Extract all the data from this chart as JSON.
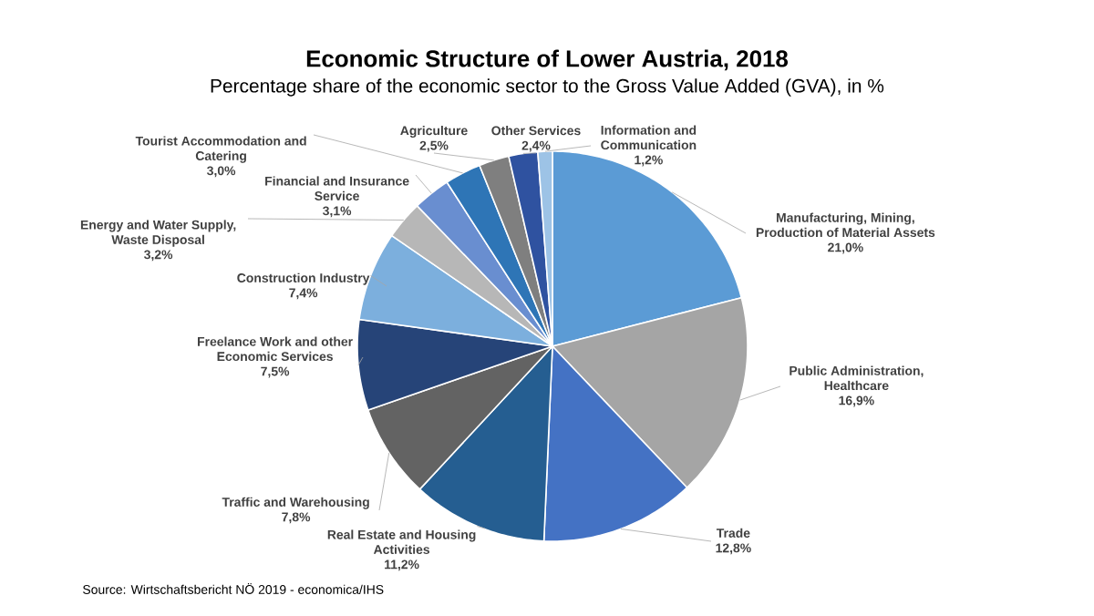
{
  "chart_data": {
    "type": "pie",
    "title": "Economic Structure of Lower Austria, 2018",
    "subtitle": "Percentage share of the economic sector to the Gross Value Added (GVA), in %",
    "categories": [
      "Manufacturing, Mining, Production of Material Assets",
      "Public Administration, Healthcare",
      "Trade",
      "Real Estate and Housing Activities",
      "Traffic and Warehousing",
      "Freelance Work and other Economic Services",
      "Construction Industry",
      "Energy and Water Supply, Waste Disposal",
      "Financial and Insurance Service",
      "Tourist Accommodation and Catering",
      "Agriculture",
      "Other Services",
      "Information and Communication"
    ],
    "values": [
      21.0,
      16.9,
      12.8,
      11.2,
      7.8,
      7.5,
      7.4,
      3.2,
      3.1,
      3.0,
      2.5,
      2.4,
      1.2
    ],
    "value_labels": [
      "21,0%",
      "16,9%",
      "12,8%",
      "11,2%",
      "7,8%",
      "7,5%",
      "7,4%",
      "3,2%",
      "3,1%",
      "3,0%",
      "2,5%",
      "2,4%",
      "1,2%"
    ],
    "colors": [
      "#5b9bd5",
      "#a5a5a5",
      "#4472c4",
      "#255e91",
      "#636363",
      "#264478",
      "#7cafdd",
      "#b7b7b7",
      "#698ed0",
      "#2e75b6",
      "#7f7f7f",
      "#2f52a0",
      "#9dc3e6"
    ],
    "annotations": [
      "Source: Wirtschaftsbericht NÖ 2019 - economica/IHS"
    ]
  }
}
